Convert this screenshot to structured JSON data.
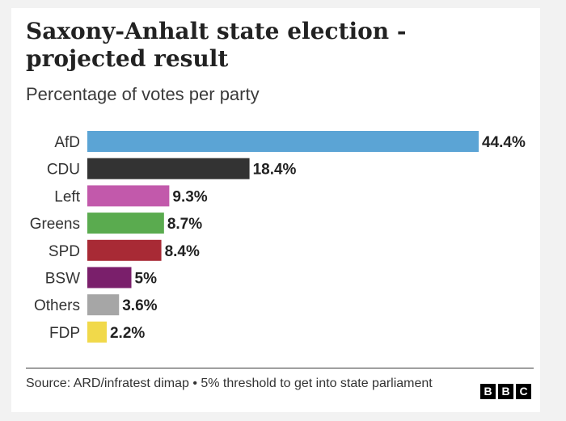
{
  "chart_data": {
    "type": "bar",
    "orientation": "horizontal",
    "title": "Saxony-Anhalt state election - projected result",
    "subtitle": "Percentage of votes per party",
    "categories": [
      "AfD",
      "CDU",
      "Left",
      "Greens",
      "SPD",
      "BSW",
      "Others",
      "FDP"
    ],
    "values": [
      44.4,
      18.4,
      9.3,
      8.7,
      8.4,
      5,
      3.6,
      2.2
    ],
    "value_labels": [
      "44.4%",
      "18.4%",
      "9.3%",
      "8.7%",
      "8.4%",
      "5%",
      "3.6%",
      "2.2%"
    ],
    "colors": [
      "#5ba4d5",
      "#333333",
      "#c259ab",
      "#5aab4f",
      "#a82a35",
      "#7a1f6b",
      "#a6a6a6",
      "#f1d94a"
    ],
    "xlim": [
      0,
      44.4
    ],
    "grid": false,
    "legend": "none"
  },
  "footer": {
    "source": "Source: ARD/infratest dimap • 5% threshold to get into state parliament"
  },
  "logo": {
    "letters": [
      "B",
      "B",
      "C"
    ]
  }
}
